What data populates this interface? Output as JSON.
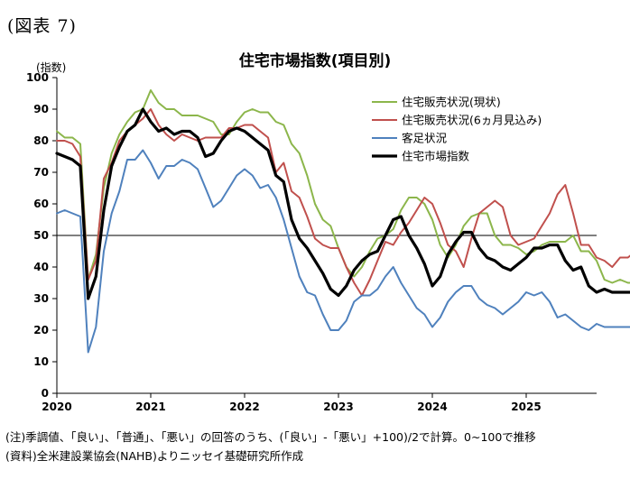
{
  "figure_label": "(図表 7)",
  "notes": {
    "note": "(注)季調値、「良い」、「普通」、「悪い」の回答のうち、(「良い」-「悪い」+100)/2で計算。0~100で推移",
    "source": "(資料)全米建設業協会(NAHB)よりニッセイ基礎研究所作成"
  },
  "chart_data": {
    "type": "line",
    "title": "住宅市場指数(項目別)",
    "ylabel": "(指数)",
    "xlabel": "",
    "ylim": [
      0,
      100
    ],
    "yticks": [
      0,
      10,
      20,
      30,
      40,
      50,
      60,
      70,
      80,
      90,
      100
    ],
    "xticks": [
      "2020",
      "2021",
      "2022",
      "2023",
      "2024",
      "2025"
    ],
    "reference_line": 50,
    "grid": false,
    "legend_position": "top-right",
    "x_start": "2020-01",
    "x_end": "2025-09",
    "series": [
      {
        "name": "住宅販売状況(現状)",
        "color": "#8cb64b",
        "width": 2,
        "values": [
          83,
          81,
          81,
          79,
          36,
          44,
          65,
          76,
          82,
          86,
          89,
          90,
          96,
          92,
          90,
          90,
          88,
          88,
          88,
          87,
          86,
          82,
          82,
          86,
          89,
          90,
          89,
          89,
          86,
          85,
          79,
          76,
          69,
          60,
          55,
          53,
          46,
          40,
          37,
          40,
          45,
          49,
          50,
          52,
          58,
          62,
          62,
          60,
          55,
          47,
          43,
          47,
          53,
          56,
          57,
          57,
          50,
          47,
          47,
          46,
          44,
          45,
          47,
          48,
          48,
          48,
          50,
          45,
          45,
          42,
          36,
          35,
          36,
          35,
          35
        ]
      },
      {
        "name": "住宅販売状況(6ヵ月見込み)",
        "color": "#c0504d",
        "width": 2,
        "values": [
          80,
          80,
          79,
          75,
          36,
          42,
          68,
          73,
          80,
          83,
          85,
          87,
          90,
          85,
          82,
          80,
          82,
          81,
          80,
          81,
          81,
          81,
          84,
          84,
          85,
          85,
          83,
          81,
          70,
          73,
          64,
          62,
          56,
          49,
          47,
          46,
          46,
          40,
          35,
          31,
          36,
          42,
          48,
          47,
          51,
          54,
          58,
          62,
          60,
          54,
          47,
          45,
          40,
          49,
          57,
          59,
          61,
          59,
          50,
          47,
          48,
          49,
          53,
          57,
          63,
          66,
          57,
          47,
          47,
          43,
          42,
          40,
          43,
          43,
          45
        ]
      },
      {
        "name": "客足状況",
        "color": "#4f81bd",
        "width": 2,
        "values": [
          57,
          58,
          57,
          56,
          13,
          21,
          45,
          57,
          64,
          74,
          74,
          77,
          73,
          68,
          72,
          72,
          74,
          73,
          71,
          65,
          59,
          61,
          65,
          69,
          71,
          69,
          65,
          66,
          62,
          55,
          46,
          37,
          32,
          31,
          25,
          20,
          20,
          23,
          29,
          31,
          31,
          33,
          37,
          40,
          35,
          31,
          27,
          25,
          21,
          24,
          29,
          32,
          34,
          34,
          30,
          28,
          27,
          25,
          27,
          29,
          32,
          31,
          32,
          29,
          24,
          25,
          23,
          21,
          20,
          22,
          21,
          21,
          21,
          21,
          21
        ]
      },
      {
        "name": "住宅市場指数",
        "color": "#000000",
        "width": 3.2,
        "values": [
          76,
          75,
          74,
          72,
          30,
          37,
          58,
          72,
          78,
          83,
          85,
          90,
          86,
          83,
          84,
          82,
          83,
          83,
          81,
          75,
          76,
          80,
          83,
          84,
          83,
          81,
          79,
          77,
          69,
          67,
          55,
          49,
          46,
          42,
          38,
          33,
          31,
          34,
          39,
          42,
          44,
          45,
          50,
          55,
          56,
          50,
          46,
          41,
          34,
          37,
          44,
          48,
          51,
          51,
          46,
          43,
          42,
          40,
          39,
          41,
          43,
          46,
          46,
          47,
          47,
          42,
          39,
          40,
          34,
          32,
          33,
          32,
          32,
          32,
          32
        ]
      }
    ]
  }
}
